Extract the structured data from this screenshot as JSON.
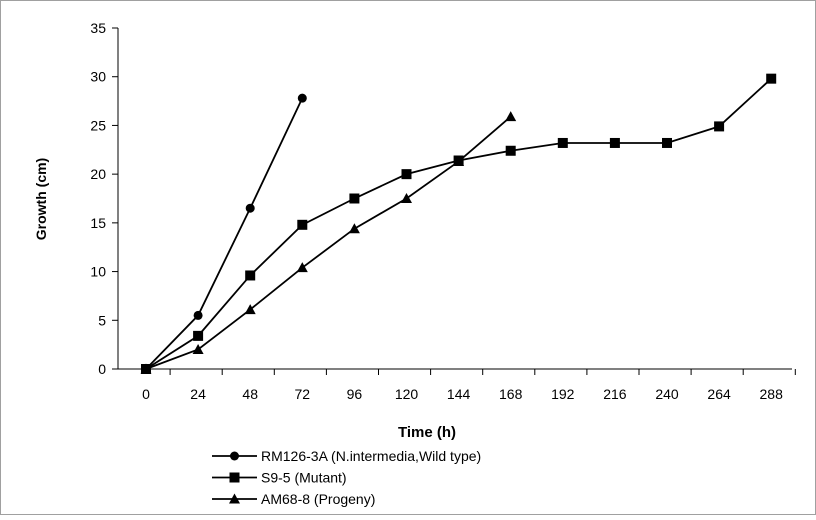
{
  "chart_data": {
    "type": "line",
    "title": "",
    "xlabel": "Time (h)",
    "ylabel": "Growth (cm)",
    "x_ticks": [
      "0",
      "24",
      "48",
      "72",
      "96",
      "120",
      "144",
      "168",
      "192",
      "216",
      "240",
      "264",
      "288"
    ],
    "y_ticks": [
      "0",
      "5",
      "10",
      "15",
      "20",
      "25",
      "30",
      "35"
    ],
    "xlim": [
      0,
      300
    ],
    "ylim": [
      0,
      35
    ],
    "grid": false,
    "legend_position": "bottom",
    "series": [
      {
        "name": "RM126-3A (N.intermedia,Wild  type)",
        "marker": "circle",
        "x": [
          0,
          24,
          48,
          72
        ],
        "y": [
          0,
          5.5,
          16.5,
          27.8
        ]
      },
      {
        "name": "S9-5 (Mutant)",
        "marker": "square",
        "x": [
          0,
          24,
          48,
          72,
          96,
          120,
          144,
          168,
          192,
          216,
          240,
          264,
          288
        ],
        "y": [
          0,
          3.4,
          9.6,
          14.8,
          17.5,
          20.0,
          21.4,
          22.4,
          23.2,
          23.2,
          23.2,
          24.9,
          29.8
        ]
      },
      {
        "name": "AM68-8 (Progeny)",
        "marker": "triangle",
        "x": [
          0,
          24,
          48,
          72,
          96,
          120,
          144,
          168
        ],
        "y": [
          0,
          2.0,
          6.1,
          10.4,
          14.4,
          17.5,
          21.3,
          25.9
        ]
      }
    ],
    "colors": {
      "line": "#000000",
      "axis": "#000000",
      "frame": "#a0a0a0"
    }
  }
}
